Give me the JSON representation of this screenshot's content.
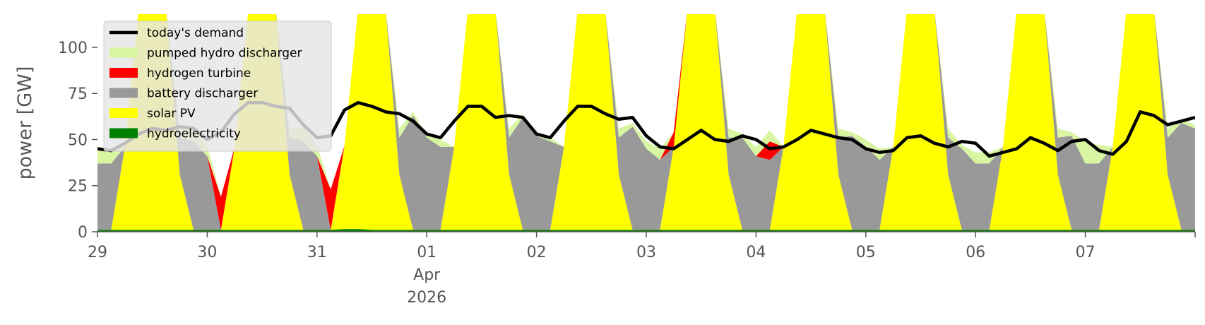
{
  "chart_data": {
    "type": "area",
    "title": "",
    "xlabel": "",
    "ylabel": "power [GW]",
    "ylim": [
      0,
      118
    ],
    "yticks": [
      "0",
      "25",
      "50",
      "75",
      "100"
    ],
    "ytick_values": [
      0,
      25,
      50,
      75,
      100
    ],
    "xlim": [
      "2026-03-29T00:00",
      "2026-04-08T00:00"
    ],
    "xticks": [
      {
        "date": "2026-03-29",
        "label": "29",
        "sub": []
      },
      {
        "date": "2026-03-30",
        "label": "30",
        "sub": []
      },
      {
        "date": "2026-03-31",
        "label": "31",
        "sub": []
      },
      {
        "date": "2026-04-01",
        "label": "01",
        "sub": [
          "Apr",
          "2026"
        ]
      },
      {
        "date": "2026-04-02",
        "label": "02",
        "sub": []
      },
      {
        "date": "2026-04-03",
        "label": "03",
        "sub": []
      },
      {
        "date": "2026-04-04",
        "label": "04",
        "sub": []
      },
      {
        "date": "2026-04-05",
        "label": "05",
        "sub": []
      },
      {
        "date": "2026-04-06",
        "label": "06",
        "sub": []
      },
      {
        "date": "2026-04-07",
        "label": "07",
        "sub": []
      }
    ],
    "legend": {
      "placement": "upper-left",
      "entries": [
        {
          "label": "today's demand",
          "color": "#000000",
          "kind": "line"
        },
        {
          "label": "pumped hydro discharger",
          "color": "#d8f5a2",
          "kind": "patch"
        },
        {
          "label": "hydrogen turbine",
          "color": "#ff0000",
          "kind": "patch"
        },
        {
          "label": "battery discharger",
          "color": "#999999",
          "kind": "patch"
        },
        {
          "label": "solar PV",
          "color": "#ffff00",
          "kind": "patch"
        },
        {
          "label": "hydroelectricity",
          "color": "#008000",
          "kind": "patch"
        }
      ]
    },
    "x": [
      "03-29 00:00",
      "03-29 03:00",
      "03-29 06:00",
      "03-29 09:00",
      "03-29 12:00",
      "03-29 15:00",
      "03-29 18:00",
      "03-29 21:00",
      "03-30 00:00",
      "03-30 03:00",
      "03-30 06:00",
      "03-30 09:00",
      "03-30 12:00",
      "03-30 15:00",
      "03-30 18:00",
      "03-30 21:00",
      "03-31 00:00",
      "03-31 03:00",
      "03-31 06:00",
      "03-31 09:00",
      "03-31 12:00",
      "03-31 15:00",
      "03-31 18:00",
      "03-31 21:00",
      "04-01 00:00",
      "04-01 03:00",
      "04-01 06:00",
      "04-01 09:00",
      "04-01 12:00",
      "04-01 15:00",
      "04-01 18:00",
      "04-01 21:00",
      "04-02 00:00",
      "04-02 03:00",
      "04-02 06:00",
      "04-02 09:00",
      "04-02 12:00",
      "04-02 15:00",
      "04-02 18:00",
      "04-02 21:00",
      "04-03 00:00",
      "04-03 03:00",
      "04-03 06:00",
      "04-03 09:00",
      "04-03 12:00",
      "04-03 15:00",
      "04-03 18:00",
      "04-03 21:00",
      "04-04 00:00",
      "04-04 03:00",
      "04-04 06:00",
      "04-04 09:00",
      "04-04 12:00",
      "04-04 15:00",
      "04-04 18:00",
      "04-04 21:00",
      "04-05 00:00",
      "04-05 03:00",
      "04-05 06:00",
      "04-05 09:00",
      "04-05 12:00",
      "04-05 15:00",
      "04-05 18:00",
      "04-05 21:00",
      "04-06 00:00",
      "04-06 03:00",
      "04-06 06:00",
      "04-06 09:00",
      "04-06 12:00",
      "04-06 15:00",
      "04-06 18:00",
      "04-06 21:00",
      "04-07 00:00",
      "04-07 03:00",
      "04-07 06:00",
      "04-07 09:00",
      "04-07 12:00",
      "04-07 15:00",
      "04-07 18:00",
      "04-07 21:00",
      "04-08 00:00"
    ],
    "series": [
      {
        "name": "hydroelectricity",
        "color": "#008000",
        "values": [
          1,
          1,
          1,
          1,
          1,
          1,
          1,
          1,
          1,
          1,
          1,
          1,
          1,
          1,
          1,
          1,
          1,
          1,
          1.5,
          1.5,
          1,
          1,
          1,
          1,
          1,
          1,
          1,
          1,
          1,
          1,
          1,
          1,
          1,
          1,
          1,
          1,
          1,
          1,
          1,
          1,
          1,
          1,
          1,
          1,
          1,
          1,
          1,
          1,
          1,
          1,
          1,
          1,
          1,
          1,
          1,
          1,
          1,
          1,
          1,
          1,
          1,
          1,
          1,
          1,
          1,
          1,
          1,
          1,
          1,
          1,
          1,
          1,
          1,
          1,
          1,
          1,
          1,
          1,
          1,
          1,
          1
        ]
      },
      {
        "name": "solar PV",
        "color": "#ffff00",
        "values": [
          0,
          0,
          45,
          120,
          120,
          120,
          30,
          0,
          0,
          0,
          45,
          120,
          120,
          120,
          30,
          0,
          0,
          0,
          45,
          120,
          120,
          120,
          30,
          0,
          0,
          0,
          45,
          120,
          120,
          120,
          30,
          0,
          0,
          0,
          45,
          120,
          120,
          120,
          30,
          0,
          0,
          0,
          45,
          120,
          120,
          120,
          30,
          0,
          0,
          0,
          45,
          120,
          120,
          120,
          30,
          0,
          0,
          0,
          45,
          120,
          120,
          120,
          30,
          0,
          0,
          0,
          45,
          120,
          120,
          120,
          30,
          0,
          0,
          0,
          45,
          120,
          120,
          120,
          30,
          0,
          0
        ]
      },
      {
        "name": "battery discharger",
        "color": "#999999",
        "values": [
          36,
          36,
          0,
          0,
          0,
          0,
          20,
          48,
          40,
          0,
          0,
          0,
          0,
          0,
          20,
          48,
          40,
          0,
          0,
          0,
          0,
          0,
          20,
          62,
          50,
          45,
          0,
          0,
          0,
          0,
          20,
          61,
          51,
          48,
          0,
          0,
          0,
          0,
          20,
          56,
          44,
          38,
          0,
          0,
          0,
          0,
          20,
          50,
          40,
          38,
          0,
          0,
          0,
          0,
          20,
          51,
          45,
          38,
          0,
          0,
          0,
          0,
          20,
          44,
          36,
          36,
          0,
          0,
          0,
          0,
          20,
          51,
          36,
          36,
          0,
          0,
          0,
          0,
          20,
          58,
          55
        ]
      },
      {
        "name": "hydrogen turbine",
        "color": "#ff0000",
        "values": [
          0,
          0,
          0,
          0,
          0,
          0,
          0,
          0,
          0,
          18,
          0,
          0,
          0,
          0,
          0,
          0,
          0,
          22,
          0,
          0,
          0,
          0,
          0,
          0,
          0,
          0,
          0,
          0,
          0,
          0,
          0,
          0,
          0,
          0,
          0,
          0,
          0,
          0,
          0,
          0,
          0,
          0,
          8,
          0,
          0,
          0,
          0,
          0,
          0,
          10,
          0,
          0,
          0,
          0,
          0,
          0,
          0,
          0,
          0,
          0,
          0,
          0,
          0,
          0,
          0,
          0,
          0,
          0,
          0,
          0,
          0,
          0,
          0,
          0,
          0,
          0,
          0,
          0,
          0,
          0,
          0
        ]
      },
      {
        "name": "pumped hydro discharger",
        "color": "#d8f5a2",
        "values": [
          8,
          8,
          0,
          0,
          0,
          0,
          5,
          8,
          6,
          0,
          0,
          0,
          0,
          0,
          5,
          8,
          6,
          0,
          0,
          0,
          0,
          0,
          5,
          2,
          1,
          4,
          0,
          0,
          0,
          0,
          5,
          2,
          1,
          2,
          0,
          0,
          0,
          0,
          5,
          2,
          4,
          6,
          0,
          0,
          0,
          0,
          5,
          2,
          5,
          6,
          0,
          0,
          0,
          0,
          5,
          2,
          4,
          6,
          0,
          0,
          0,
          0,
          5,
          2,
          6,
          6,
          0,
          0,
          0,
          0,
          5,
          2,
          12,
          10,
          0,
          0,
          0,
          0,
          5,
          2,
          2
        ]
      }
    ],
    "demand": {
      "name": "today's demand",
      "color": "#000000",
      "values": [
        45,
        44,
        48,
        53,
        56,
        55,
        57,
        56,
        50,
        54,
        64,
        70,
        70,
        68,
        67,
        58,
        51,
        52,
        66,
        70,
        68,
        65,
        64,
        60,
        53,
        51,
        60,
        68,
        68,
        62,
        63,
        62,
        53,
        51,
        60,
        68,
        68,
        64,
        61,
        62,
        52,
        46,
        45,
        50,
        55,
        50,
        49,
        52,
        50,
        45,
        46,
        50,
        55,
        53,
        51,
        50,
        45,
        43,
        44,
        51,
        52,
        48,
        46,
        49,
        48,
        41,
        43,
        45,
        51,
        48,
        44,
        49,
        50,
        44,
        42,
        49,
        65,
        63,
        58,
        60,
        62
      ]
    }
  }
}
